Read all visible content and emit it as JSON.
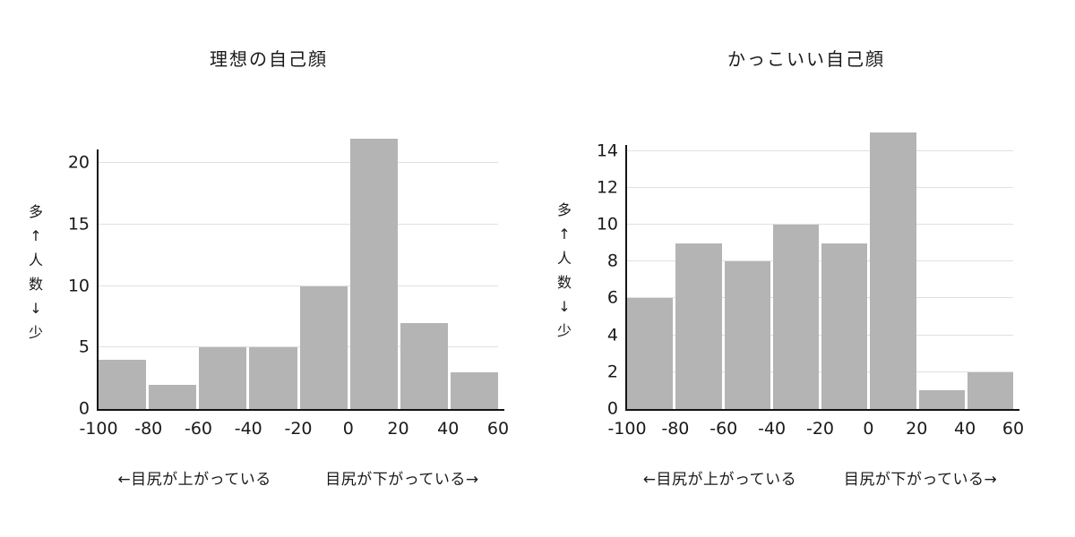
{
  "page": {
    "background_color": "#ffffff",
    "text_color": "#1a1a1a"
  },
  "chart_data": [
    {
      "type": "bar",
      "title": "理想の自己顔",
      "bin_edges": [
        -100,
        -80,
        -60,
        -40,
        -20,
        0,
        20,
        40,
        60
      ],
      "values": [
        4,
        2,
        5,
        5,
        10,
        22,
        7,
        3
      ],
      "yticks": [
        0,
        5,
        10,
        15,
        20
      ],
      "ylim": [
        0,
        22.2
      ],
      "ylabel_chars": [
        "多",
        "↑",
        "人",
        "数",
        "↓",
        "少"
      ],
      "annotation_left": "←目尻が上がっている",
      "annotation_right": "目尻が下がっている→",
      "bar_color": "#b4b4b4",
      "grid_color": "#e0e0e0",
      "axis_color": "#141414",
      "grid": true,
      "legend": false
    },
    {
      "type": "bar",
      "title": "かっこいい自己顔",
      "bin_edges": [
        -100,
        -80,
        -60,
        -40,
        -20,
        0,
        20,
        40,
        60
      ],
      "values": [
        6,
        9,
        8,
        10,
        9,
        15,
        1,
        2
      ],
      "yticks": [
        0,
        2,
        4,
        6,
        8,
        10,
        12,
        14
      ],
      "ylim": [
        0,
        15.05
      ],
      "ylabel_chars": [
        "多",
        "↑",
        "人",
        "数",
        "↓",
        "少"
      ],
      "annotation_left": "←目尻が上がっている",
      "annotation_right": "目尻が下がっている→",
      "bar_color": "#b4b4b4",
      "grid_color": "#e0e0e0",
      "axis_color": "#141414",
      "grid": true,
      "legend": false
    }
  ]
}
